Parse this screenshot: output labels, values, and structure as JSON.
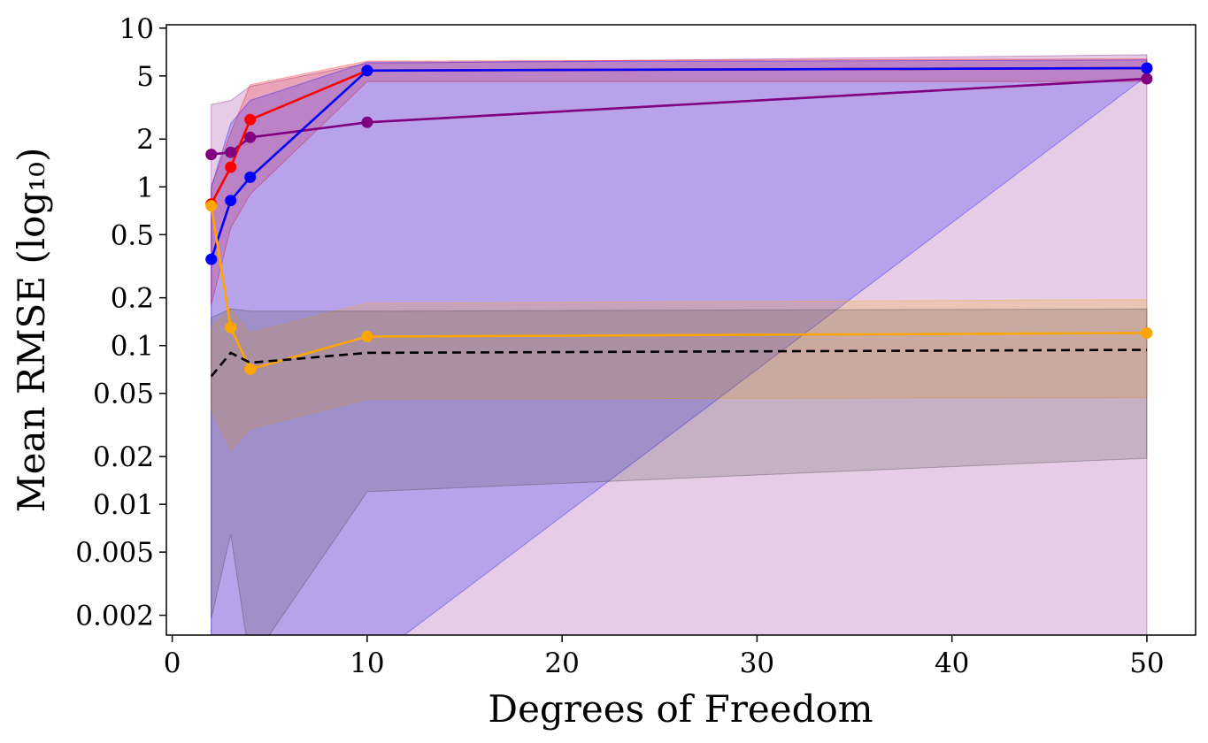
{
  "chart_data": {
    "type": "line",
    "title": "",
    "xlabel": "Degrees of Freedom",
    "ylabel": "Mean RMSE (log₁₀)",
    "x_scale": "linear",
    "y_scale": "log",
    "xlim": [
      -0.3,
      52.5
    ],
    "ylim": [
      0.0015,
      10.5
    ],
    "xticks": [
      0,
      10,
      20,
      30,
      40,
      50
    ],
    "xtick_labels": [
      "0",
      "10",
      "20",
      "30",
      "40",
      "50"
    ],
    "yticks": [
      0.002,
      0.005,
      0.01,
      0.02,
      0.05,
      0.1,
      0.2,
      0.5,
      1,
      2,
      5,
      10
    ],
    "ytick_labels": [
      "0.002",
      "0.005",
      "0.01",
      "0.02",
      "0.05",
      "0.1",
      "0.2",
      "0.5",
      "1",
      "2",
      "5",
      "10"
    ],
    "grid": false,
    "legend": "none",
    "x": [
      2,
      3,
      4,
      10,
      50
    ],
    "bands": [
      {
        "color": "#800080",
        "opacity": 0.2,
        "x": [
          2,
          3,
          4,
          10,
          50
        ],
        "lower": [
          0.001,
          0.001,
          0.001,
          0.001,
          0.001
        ],
        "upper": [
          3.3,
          3.5,
          4.3,
          6.0,
          6.8
        ]
      },
      {
        "color": "#ff0000",
        "opacity": 0.2,
        "x": [
          2,
          3,
          4,
          10,
          50
        ],
        "lower": [
          0.18,
          0.55,
          0.9,
          4.6,
          4.6
        ],
        "upper": [
          1.0,
          2.2,
          4.4,
          6.2,
          6.4
        ]
      },
      {
        "color": "#0000ff",
        "opacity": 0.2,
        "x": [
          2,
          3,
          4,
          10,
          50
        ],
        "lower": [
          0.001,
          0.001,
          0.001,
          0.001,
          5.0
        ],
        "upper": [
          1.0,
          2.5,
          3.5,
          6.1,
          6.3
        ]
      },
      {
        "color": "#ffa500",
        "opacity": 0.2,
        "x": [
          2,
          3,
          4,
          10,
          50
        ],
        "lower": [
          0.04,
          0.022,
          0.03,
          0.046,
          0.047
        ],
        "upper": [
          0.13,
          0.17,
          0.12,
          0.185,
          0.195
        ]
      },
      {
        "color": "#404040",
        "opacity": 0.2,
        "x": [
          2,
          3,
          4,
          10,
          50
        ],
        "lower": [
          0.0019,
          0.0065,
          0.001,
          0.012,
          0.0195
        ],
        "upper": [
          0.15,
          0.17,
          0.165,
          0.165,
          0.17
        ]
      }
    ],
    "series": [
      {
        "color": "#800080",
        "style": "solid",
        "marker": "o",
        "values": [
          1.6,
          1.65,
          2.05,
          2.55,
          4.8
        ]
      },
      {
        "color": "#ff0000",
        "style": "solid",
        "marker": "o",
        "values": [
          0.78,
          1.33,
          2.65,
          5.4,
          5.6
        ]
      },
      {
        "color": "#0000ff",
        "style": "solid",
        "marker": "o",
        "values": [
          0.35,
          0.82,
          1.15,
          5.4,
          5.6
        ]
      },
      {
        "color": "#ffa500",
        "style": "solid",
        "marker": "o",
        "values": [
          0.76,
          0.13,
          0.071,
          0.114,
          0.12
        ]
      },
      {
        "color": "#000000",
        "style": "dashed",
        "marker": "none",
        "values": [
          0.064,
          0.09,
          0.078,
          0.09,
          0.094
        ]
      }
    ]
  }
}
